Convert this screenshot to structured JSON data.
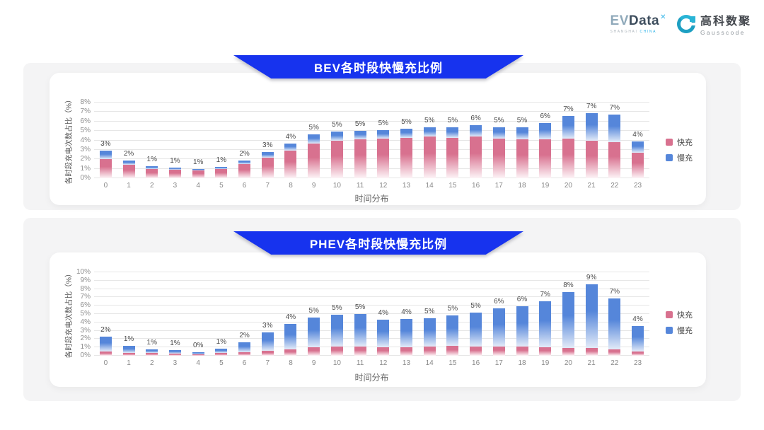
{
  "header": {
    "evdata": {
      "ev": "EV",
      "data": "Data",
      "sup": "✕",
      "subtitle_left": "SHANGHAI",
      "subtitle_right": "CHINA"
    },
    "gausscode": {
      "cn": "高科数聚",
      "en": "Gausscode"
    }
  },
  "colors": {
    "banner_blue": "#1733ee",
    "fast": "#d8718f",
    "fast_fade": "#fdf4f7",
    "slow": "#5586da",
    "slow_fade": "#e3ebf8",
    "panel_gray": "#f4f4f5"
  },
  "chart_data": [
    {
      "type": "bar",
      "stacked": true,
      "title": "BEV各时段快慢充比例",
      "xlabel": "时间分布",
      "ylabel": "各时段充电次数占比（%）",
      "ylim": [
        0,
        8
      ],
      "ytick_step": 1,
      "grid": true,
      "legend_position": "right",
      "categories": [
        "0",
        "1",
        "2",
        "3",
        "4",
        "5",
        "6",
        "7",
        "8",
        "9",
        "10",
        "11",
        "12",
        "13",
        "14",
        "15",
        "16",
        "17",
        "18",
        "19",
        "20",
        "21",
        "22",
        "23"
      ],
      "series": [
        {
          "name": "快充",
          "color": "#d8718f",
          "values": [
            2.0,
            1.4,
            1.0,
            0.9,
            0.8,
            0.95,
            1.5,
            2.2,
            2.9,
            3.7,
            4.0,
            4.1,
            4.2,
            4.3,
            4.4,
            4.3,
            4.4,
            4.2,
            4.1,
            4.1,
            4.2,
            4.2,
            3.8,
            2.7
          ]
        },
        {
          "name": "慢充",
          "color": "#5586da",
          "values": [
            0.95,
            0.45,
            0.3,
            0.25,
            0.2,
            0.25,
            0.4,
            0.6,
            0.8,
            0.9,
            0.9,
            0.9,
            0.9,
            0.9,
            1.0,
            1.1,
            1.2,
            1.2,
            1.3,
            1.7,
            2.4,
            3.1,
            2.9,
            1.2
          ]
        }
      ],
      "bar_labels": [
        "3%",
        "2%",
        "1%",
        "1%",
        "1%",
        "1%",
        "2%",
        "3%",
        "4%",
        "5%",
        "5%",
        "5%",
        "5%",
        "5%",
        "5%",
        "5%",
        "6%",
        "5%",
        "5%",
        "6%",
        "7%",
        "7%",
        "7%",
        "4%"
      ]
    },
    {
      "type": "bar",
      "stacked": true,
      "title": "PHEV各时段快慢充比例",
      "xlabel": "时间分布",
      "ylabel": "各时段充电次数占比（%）",
      "ylim": [
        0,
        10
      ],
      "ytick_step": 1,
      "grid": true,
      "legend_position": "right",
      "categories": [
        "0",
        "1",
        "2",
        "3",
        "4",
        "5",
        "6",
        "7",
        "8",
        "9",
        "10",
        "11",
        "12",
        "13",
        "14",
        "15",
        "16",
        "17",
        "18",
        "19",
        "20",
        "21",
        "22",
        "23"
      ],
      "series": [
        {
          "name": "快充",
          "color": "#d8718f",
          "values": [
            0.5,
            0.35,
            0.3,
            0.25,
            0.2,
            0.3,
            0.45,
            0.6,
            0.8,
            1.0,
            1.1,
            1.1,
            1.0,
            1.05,
            1.1,
            1.2,
            1.1,
            1.1,
            1.1,
            1.05,
            0.9,
            0.9,
            0.8,
            0.5
          ]
        },
        {
          "name": "慢充",
          "color": "#5586da",
          "values": [
            1.75,
            0.85,
            0.5,
            0.4,
            0.25,
            0.55,
            1.15,
            2.2,
            3.0,
            3.6,
            3.8,
            3.9,
            3.3,
            3.35,
            3.4,
            3.6,
            4.1,
            4.6,
            4.8,
            5.45,
            6.7,
            7.7,
            6.1,
            3.1
          ]
        }
      ],
      "bar_labels": [
        "2%",
        "1%",
        "1%",
        "1%",
        "0%",
        "1%",
        "2%",
        "3%",
        "4%",
        "5%",
        "5%",
        "5%",
        "4%",
        "4%",
        "5%",
        "5%",
        "5%",
        "6%",
        "6%",
        "7%",
        "8%",
        "9%",
        "7%",
        "4%"
      ]
    }
  ]
}
